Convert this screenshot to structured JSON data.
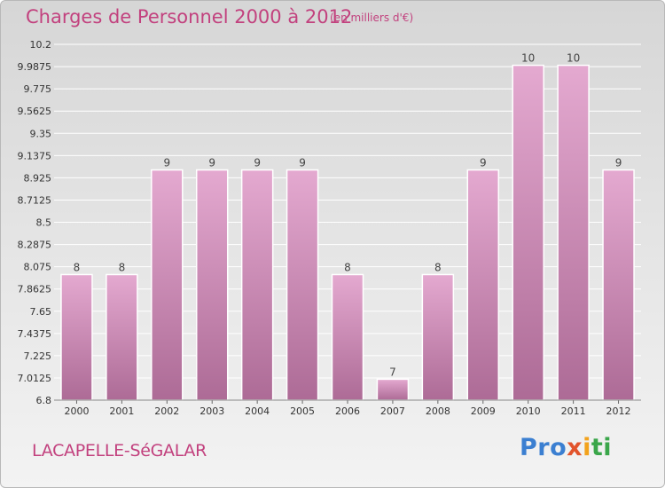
{
  "header": {
    "title": "Charges de Personnel 2000 à 2012",
    "unit": "(en milliers d'€)"
  },
  "footer": {
    "commune": "LACAPELLE-SéGALAR",
    "logo": [
      "Pro",
      "x",
      "i",
      "ti"
    ]
  },
  "colors": {
    "title": "#c2417e",
    "bar_top": "#e4a9d0",
    "bar_bottom": "#ad6b96",
    "grid": "#ffffff"
  },
  "chart_data": {
    "type": "bar",
    "title": "Charges de Personnel 2000 à 2012",
    "xlabel": "",
    "ylabel": "",
    "categories": [
      "2000",
      "2001",
      "2002",
      "2003",
      "2004",
      "2005",
      "2006",
      "2007",
      "2008",
      "2009",
      "2010",
      "2011",
      "2012"
    ],
    "values": [
      8,
      8,
      9,
      9,
      9,
      9,
      8,
      7,
      8,
      9,
      10,
      10,
      9
    ],
    "plotted_values": [
      8.0,
      8.0,
      9.0,
      9.0,
      9.0,
      9.0,
      8.0,
      7.0,
      8.0,
      9.0,
      10.0,
      10.0,
      9.0
    ],
    "ylim": [
      6.8,
      10.2
    ],
    "yticks": [
      "6.8",
      "7.0125",
      "7.225",
      "7.4375",
      "7.65",
      "7.8625",
      "8.075",
      "8.2875",
      "8.5",
      "8.7125",
      "8.925",
      "9.1375",
      "9.35",
      "9.5625",
      "9.775",
      "9.9875",
      "10.2"
    ],
    "grid": true,
    "legend": "none"
  }
}
